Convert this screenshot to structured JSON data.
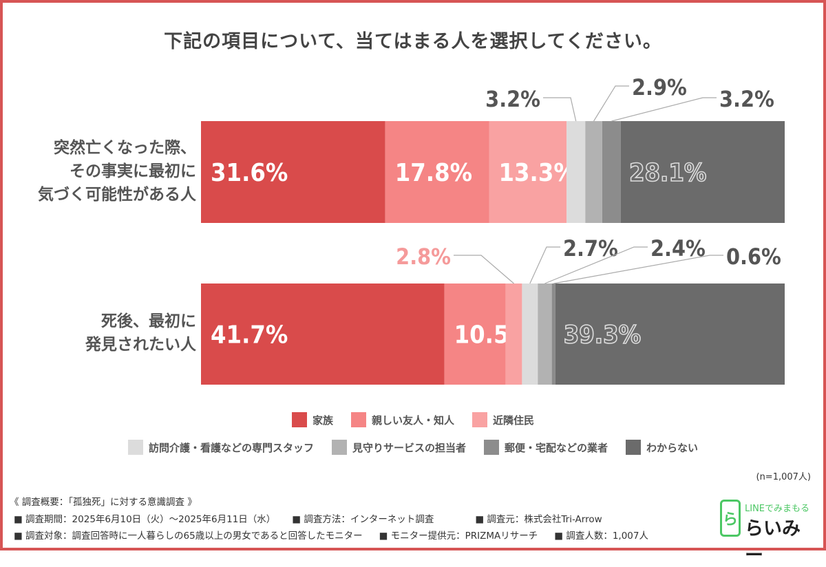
{
  "title": "下記の項目について、当てはまる人を選択してください。",
  "chart_data": {
    "type": "bar",
    "orientation": "horizontal",
    "stacked": true,
    "title": "下記の項目について、当てはまる人を選択してください。",
    "categories": [
      [
        "突然亡くなった際、",
        "その事実に最初に",
        "気づく可能性がある人"
      ],
      [
        "死後、最初に",
        "発見されたい人"
      ]
    ],
    "series": [
      {
        "name": "家族",
        "color": "#d94b4b",
        "values": [
          31.6,
          41.7
        ]
      },
      {
        "name": "親しい友人・知人",
        "color": "#f58585",
        "values": [
          17.8,
          10.5
        ]
      },
      {
        "name": "近隣住民",
        "color": "#f9a2a2",
        "values": [
          13.3,
          2.8
        ]
      },
      {
        "name": "訪問介護・看護などの専門スタッフ",
        "color": "#dcdcdc",
        "values": [
          3.2,
          2.7
        ]
      },
      {
        "name": "見守りサービスの担当者",
        "color": "#b2b2b2",
        "values": [
          2.9,
          2.4
        ]
      },
      {
        "name": "郵便・宅配などの業者",
        "color": "#8c8c8c",
        "values": [
          3.2,
          0.6
        ]
      },
      {
        "name": "わからない",
        "color": "#6b6b6b",
        "values": [
          28.1,
          39.3
        ]
      }
    ],
    "value_format": "{v}%",
    "grid": false,
    "legend_position": "bottom"
  },
  "sample_note": "(n=1,007人)",
  "footer": {
    "heading": "《 調査概要：「孤独死」に対する意識調査 》",
    "line1": [
      "■ 調査期間：2025年6月10日（火）～2025年6月11日（水）",
      "■ 調査方法：インターネット調査",
      "■ 調査元：株式会社Tri-Arrow"
    ],
    "line2": [
      "■ 調査対象：調査回答時に一人暮らしの65歳以上の男女であると回答したモニター",
      "■ モニター提供元：PRIZMAリサーチ",
      "■ 調査人数：1,007人"
    ]
  },
  "logo": {
    "tagline": "LINEでみまもる",
    "name": "らいみー",
    "mark": "ら"
  }
}
